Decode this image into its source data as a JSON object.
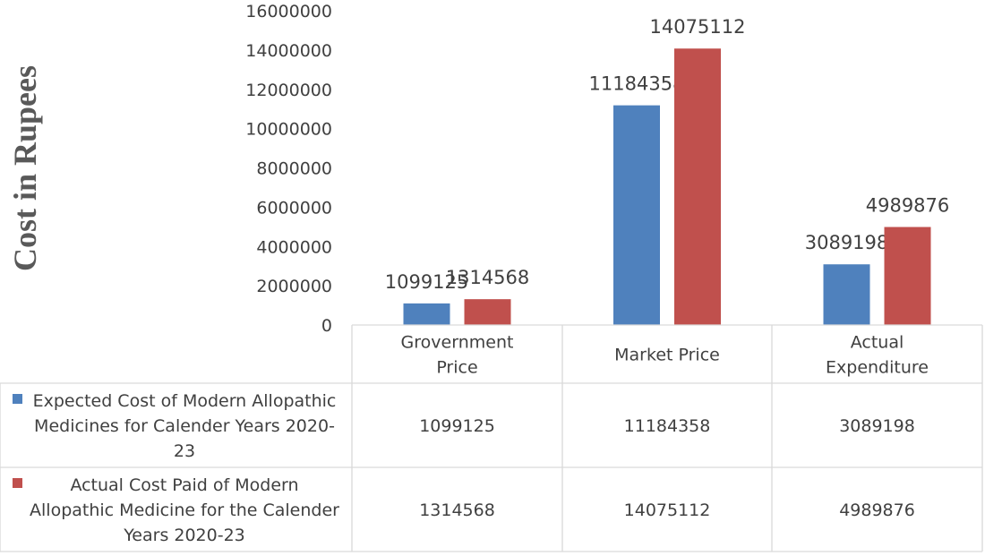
{
  "chart_data": {
    "type": "bar",
    "ylabel": "Cost in Rupees",
    "ylim": [
      0,
      16000000
    ],
    "yticks": [
      0,
      2000000,
      4000000,
      6000000,
      8000000,
      10000000,
      12000000,
      14000000,
      16000000
    ],
    "categories": [
      [
        "Grovernment",
        "Price"
      ],
      [
        "Market Price"
      ],
      [
        "Actual",
        "Expenditure"
      ]
    ],
    "series": [
      {
        "name_lines": [
          "Expected Cost of Modern Allopathic",
          "Medicines for Calender Years 2020-",
          "23"
        ],
        "color": "#4f81bd",
        "values": [
          1099125,
          11184358,
          3089198
        ]
      },
      {
        "name_lines": [
          "Actual Cost Paid of Modern",
          "Allopathic Medicine for the Calender",
          "Years 2020-23"
        ],
        "color": "#c0504d",
        "values": [
          1314568,
          14075112,
          4989876
        ]
      }
    ],
    "data_table": true,
    "legend": "in data table"
  }
}
